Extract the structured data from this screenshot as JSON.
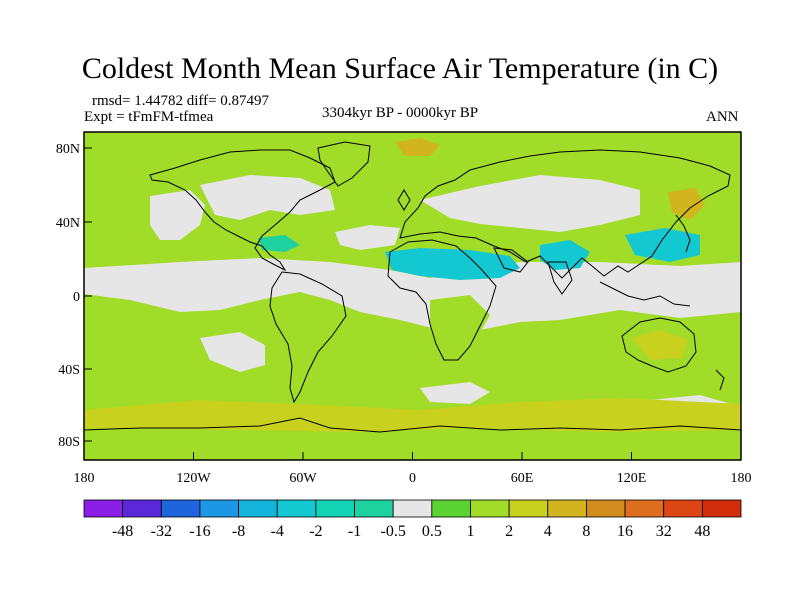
{
  "header": {
    "title": "Coldest Month Mean Surface Air Temperature (in C)",
    "stats": "rmsd= 1.44782 diff= 0.87497",
    "experiment": "Expt = tFmFM-tfmea",
    "period": "3304kyr BP - 0000kyr BP",
    "season": "ANN"
  },
  "axes": {
    "y_ticks": [
      "80N",
      "40N",
      "0",
      "40S",
      "80S"
    ],
    "x_ticks": [
      "180",
      "120W",
      "60W",
      "0",
      "60E",
      "120E",
      "180"
    ]
  },
  "colorbar": {
    "labels": [
      "-48",
      "-32",
      "-16",
      "-8",
      "-4",
      "-2",
      "-1",
      "-0.5",
      "0.5",
      "1",
      "2",
      "4",
      "8",
      "16",
      "32",
      "48"
    ],
    "colors": [
      "#8b1ee6",
      "#5a28d8",
      "#1e64dc",
      "#1e96e6",
      "#14b4dc",
      "#14c8d2",
      "#14d2b4",
      "#1ed2a0",
      "#e6e6e6",
      "#5ad232",
      "#a0dc28",
      "#c8d21e",
      "#d2b41e",
      "#d28c1e",
      "#dc6e1e",
      "#dc4614",
      "#d22d0a"
    ]
  },
  "palette": {
    "neutral": "#e6e6e6",
    "green": "#5ad232",
    "light_green": "#a0dc28",
    "yellow_green": "#c8d21e",
    "gold": "#d2b41e",
    "orange": "#d28c1e",
    "cyan": "#14c8d2",
    "teal": "#1ed2a0"
  }
}
